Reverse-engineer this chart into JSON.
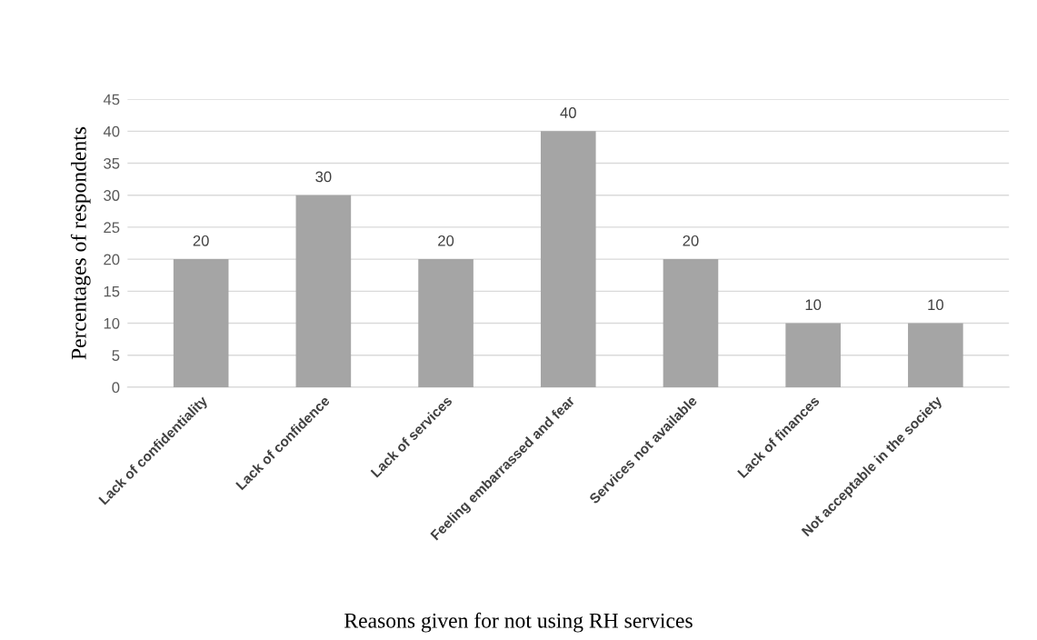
{
  "chart_data": {
    "type": "bar",
    "xlabel": "Reasons given for not using RH services",
    "ylabel": "Percentages of respondents",
    "categories": [
      "Lack of confidentiality",
      "Lack of confidence",
      "Lack of services",
      "Feeling embarrassed and fear",
      "Services not available",
      "Lack of finances",
      "Not acceptable in the society"
    ],
    "values": [
      20,
      30,
      20,
      40,
      20,
      10,
      10
    ],
    "color": "#a5a5a5",
    "ylim": [
      0,
      45
    ],
    "yticks": [
      0,
      5,
      10,
      15,
      20,
      25,
      30,
      35,
      40,
      45
    ],
    "grid": "y",
    "data_labels": true
  }
}
